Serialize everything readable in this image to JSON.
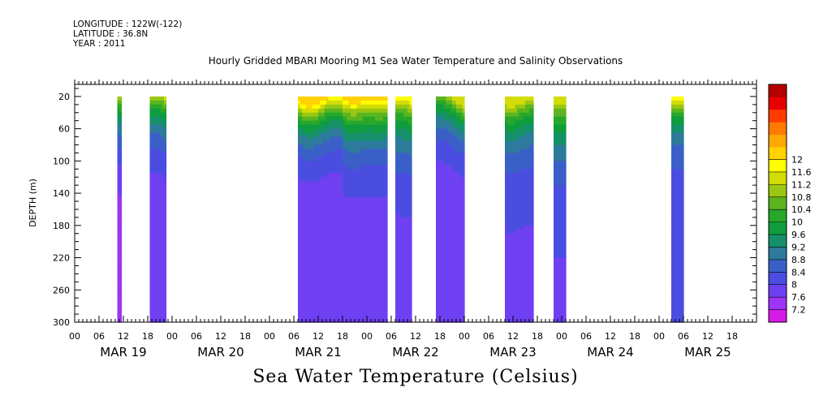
{
  "header": {
    "longitude": "LONGITUDE : 122W(-122)",
    "latitude": "LATITUDE : 36.8N",
    "year": "YEAR : 2011"
  },
  "chart_title": "Hourly Gridded MBARI Mooring M1 Sea Water Temperature and Salinity Observations",
  "bottom_title": "Sea Water Temperature (Celsius)",
  "chart_data": {
    "type": "heatmap",
    "ylabel": "DEPTH (m)",
    "ylim": [
      300,
      5
    ],
    "y_ticks": [
      20,
      60,
      100,
      140,
      180,
      220,
      260,
      300
    ],
    "xlim_hours": [
      0,
      168
    ],
    "x_hour_ticks": [
      "00",
      "06",
      "12",
      "18"
    ],
    "x_day_labels": [
      "MAR 19",
      "MAR 20",
      "MAR 21",
      "MAR 22",
      "MAR 23",
      "MAR 24",
      "MAR 25"
    ],
    "colorbar": {
      "levels": [
        7.2,
        7.6,
        8,
        8.4,
        8.8,
        9.2,
        9.6,
        10,
        10.4,
        10.8,
        11.2,
        11.6,
        12
      ],
      "colors": [
        "#d51ae8",
        "#9d34f7",
        "#6f40f2",
        "#4b4de0",
        "#3a60c8",
        "#2d7a9c",
        "#16906a",
        "#0f9c3f",
        "#27a82a",
        "#5ab520",
        "#9ac712",
        "#d3dc06",
        "#ffff00",
        "#ffd200",
        "#ffa800",
        "#ff7a00",
        "#ff3c00",
        "#e80000",
        "#b40000"
      ]
    },
    "segments": [
      {
        "start_hour": 10.5,
        "end_hour": 11.5,
        "surface_temp": 11.0,
        "decay": 0.55,
        "deep_temp": 7.2
      },
      {
        "start_hour": 18.5,
        "end_hour": 22.5,
        "surface_temp": 11.6,
        "decay": 0.45,
        "deep_temp": 7.6
      },
      {
        "start_hour": 55,
        "end_hour": 66,
        "surface_temp": 12.0,
        "decay": 0.4,
        "deep_temp": 7.6
      },
      {
        "start_hour": 66,
        "end_hour": 77,
        "surface_temp": 12.0,
        "decay": 0.45,
        "deep_temp": 7.7
      },
      {
        "start_hour": 79,
        "end_hour": 83,
        "surface_temp": 11.7,
        "decay": 0.5,
        "deep_temp": 7.8
      },
      {
        "start_hour": 89,
        "end_hour": 96,
        "surface_temp": 11.2,
        "decay": 0.4,
        "deep_temp": 7.6
      },
      {
        "start_hour": 106,
        "end_hour": 113,
        "surface_temp": 11.3,
        "decay": 0.45,
        "deep_temp": 7.9
      },
      {
        "start_hour": 118,
        "end_hour": 121,
        "surface_temp": 11.4,
        "decay": 0.55,
        "deep_temp": 7.9
      },
      {
        "start_hour": 147,
        "end_hour": 150,
        "surface_temp": 11.7,
        "decay": 0.35,
        "deep_temp": 8.1
      }
    ]
  }
}
